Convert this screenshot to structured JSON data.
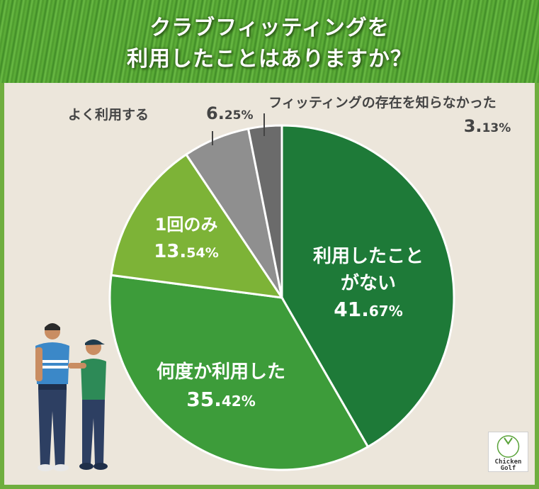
{
  "header": {
    "title_line1": "クラブフィッティングを",
    "title_line2": "利用したことはありますか？"
  },
  "chart_data": {
    "type": "pie",
    "slices": [
      {
        "label_lines": [
          "利用したこと",
          "がない"
        ],
        "value": 41.67,
        "value_int": "41.",
        "value_dec": "67%",
        "color": "#1e7a38"
      },
      {
        "label_lines": [
          "何度か利用した"
        ],
        "value": 35.42,
        "value_int": "35.",
        "value_dec": "42%",
        "color": "#3d9c3a"
      },
      {
        "label_lines": [
          "1回のみ"
        ],
        "value": 13.54,
        "value_int": "13.",
        "value_dec": "54%",
        "color": "#7db337"
      },
      {
        "label_lines": [
          "よく利用する"
        ],
        "value": 6.25,
        "value_int": "6.",
        "value_dec": "25%",
        "color": "#8f8f8f"
      },
      {
        "label_lines": [
          "フィッティングの存在を知らなかった"
        ],
        "value": 3.13,
        "value_int": "3.",
        "value_dec": "13%",
        "color": "#6b6b6b"
      }
    ]
  },
  "logo": {
    "brand_line1": "Chicken",
    "brand_line2": "Golf"
  }
}
